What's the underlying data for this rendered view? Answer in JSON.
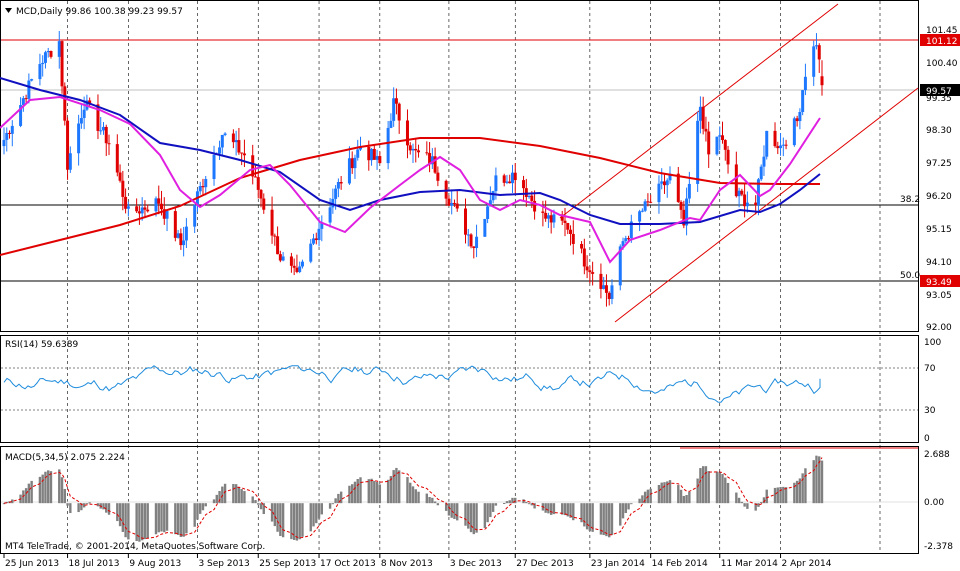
{
  "header": {
    "symbol_line": "MCD,Daily  99.86 100.38 99.23 99.57"
  },
  "main_axis": {
    "labels": [
      "101.45",
      "100.40",
      "99.35",
      "98.30",
      "97.25",
      "96.20",
      "95.15",
      "94.10",
      "93.05",
      "92.00"
    ],
    "current_price_label": "99.57",
    "resistance_label": "101.12",
    "support_label": "93.49",
    "fib_382_label": "38.2",
    "fib_50_label": "50.0"
  },
  "rsi": {
    "title": "RSI(14) 59.6389",
    "levels": [
      "100",
      "70",
      "30",
      "0"
    ]
  },
  "macd": {
    "title": "MACD(5,34,5) 2.075 2.224",
    "levels": [
      "2.688",
      "0.00",
      "-2.378"
    ]
  },
  "footer": {
    "copyright": "MT4 TeleTrade, © 2001-2014, MetaQuotes Software Corp."
  },
  "dates": [
    "25 Jun 2013",
    "18 Jul 2013",
    "9 Aug 2013",
    "3 Sep 2013",
    "25 Sep 2013",
    "17 Oct 2013",
    "8 Nov 2013",
    "3 Dec 2013",
    "27 Dec 2013",
    "23 Jan 2014",
    "14 Feb 2014",
    "11 Mar 2014",
    "2 Apr 2014"
  ],
  "colors": {
    "bull_candle": "#1e78ff",
    "bear_candle": "#e00000",
    "ma_short": "#e020e0",
    "ma_medium": "#1010c0",
    "ma_long": "#e00000",
    "rsi_line": "#1e8cdc",
    "macd_hist": "#808080",
    "macd_signal": "#e00000",
    "channel": "#e00000"
  },
  "chart_data": {
    "type": "candlestick",
    "title": "MCD,Daily",
    "ohlc_last": {
      "open": 99.86,
      "high": 100.38,
      "low": 99.23,
      "close": 99.57
    },
    "ylim": [
      91.6,
      102.3
    ],
    "close_path": [
      {
        "date": "2013-06-25",
        "close": 97.8
      },
      {
        "date": "2013-07-08",
        "close": 100.3
      },
      {
        "date": "2013-07-15",
        "close": 101.0
      },
      {
        "date": "2013-07-18",
        "close": 97.0
      },
      {
        "date": "2013-07-24",
        "close": 99.0
      },
      {
        "date": "2013-08-02",
        "close": 97.7
      },
      {
        "date": "2013-08-09",
        "close": 95.4
      },
      {
        "date": "2013-08-20",
        "close": 95.8
      },
      {
        "date": "2013-08-28",
        "close": 94.4
      },
      {
        "date": "2013-09-03",
        "close": 96.0
      },
      {
        "date": "2013-09-12",
        "close": 98.0
      },
      {
        "date": "2013-09-20",
        "close": 97.3
      },
      {
        "date": "2013-09-25",
        "close": 96.2
      },
      {
        "date": "2013-10-03",
        "close": 94.0
      },
      {
        "date": "2013-10-09",
        "close": 93.3
      },
      {
        "date": "2013-10-17",
        "close": 95.0
      },
      {
        "date": "2013-10-25",
        "close": 96.5
      },
      {
        "date": "2013-11-01",
        "close": 97.6
      },
      {
        "date": "2013-11-08",
        "close": 97.0
      },
      {
        "date": "2013-11-13",
        "close": 99.0
      },
      {
        "date": "2013-11-20",
        "close": 97.4
      },
      {
        "date": "2013-11-27",
        "close": 97.1
      },
      {
        "date": "2013-12-03",
        "close": 95.9
      },
      {
        "date": "2013-12-12",
        "close": 94.4
      },
      {
        "date": "2013-12-20",
        "close": 96.5
      },
      {
        "date": "2013-12-27",
        "close": 96.7
      },
      {
        "date": "2014-01-06",
        "close": 95.3
      },
      {
        "date": "2014-01-15",
        "close": 95.0
      },
      {
        "date": "2014-01-21",
        "close": 93.9
      },
      {
        "date": "2014-01-27",
        "close": 93.2
      },
      {
        "date": "2014-01-30",
        "close": 92.7
      },
      {
        "date": "2014-02-04",
        "close": 94.5
      },
      {
        "date": "2014-02-10",
        "close": 95.4
      },
      {
        "date": "2014-02-14",
        "close": 95.8
      },
      {
        "date": "2014-02-21",
        "close": 96.6
      },
      {
        "date": "2014-02-26",
        "close": 95.0
      },
      {
        "date": "2014-03-04",
        "close": 98.9
      },
      {
        "date": "2014-03-07",
        "close": 97.3
      },
      {
        "date": "2014-03-11",
        "close": 98.0
      },
      {
        "date": "2014-03-17",
        "close": 96.0
      },
      {
        "date": "2014-03-24",
        "close": 95.7
      },
      {
        "date": "2014-03-28",
        "close": 98.0
      },
      {
        "date": "2014-04-02",
        "close": 97.6
      },
      {
        "date": "2014-04-08",
        "close": 98.4
      },
      {
        "date": "2014-04-11",
        "close": 100.0
      },
      {
        "date": "2014-04-15",
        "close": 101.0
      },
      {
        "date": "2014-04-17",
        "close": 99.57
      }
    ],
    "horizontal_levels": [
      101.12,
      96.0,
      93.49
    ],
    "fib_levels": [
      {
        "label": "38.2",
        "value": 96.0
      },
      {
        "label": "50.0",
        "value": 93.49
      }
    ],
    "rsi_ylim": [
      0,
      100
    ],
    "rsi_last": 59.6389,
    "macd_ylim": [
      -2.378,
      2.688
    ],
    "macd_last": {
      "main": 2.075,
      "signal": 2.224
    }
  }
}
